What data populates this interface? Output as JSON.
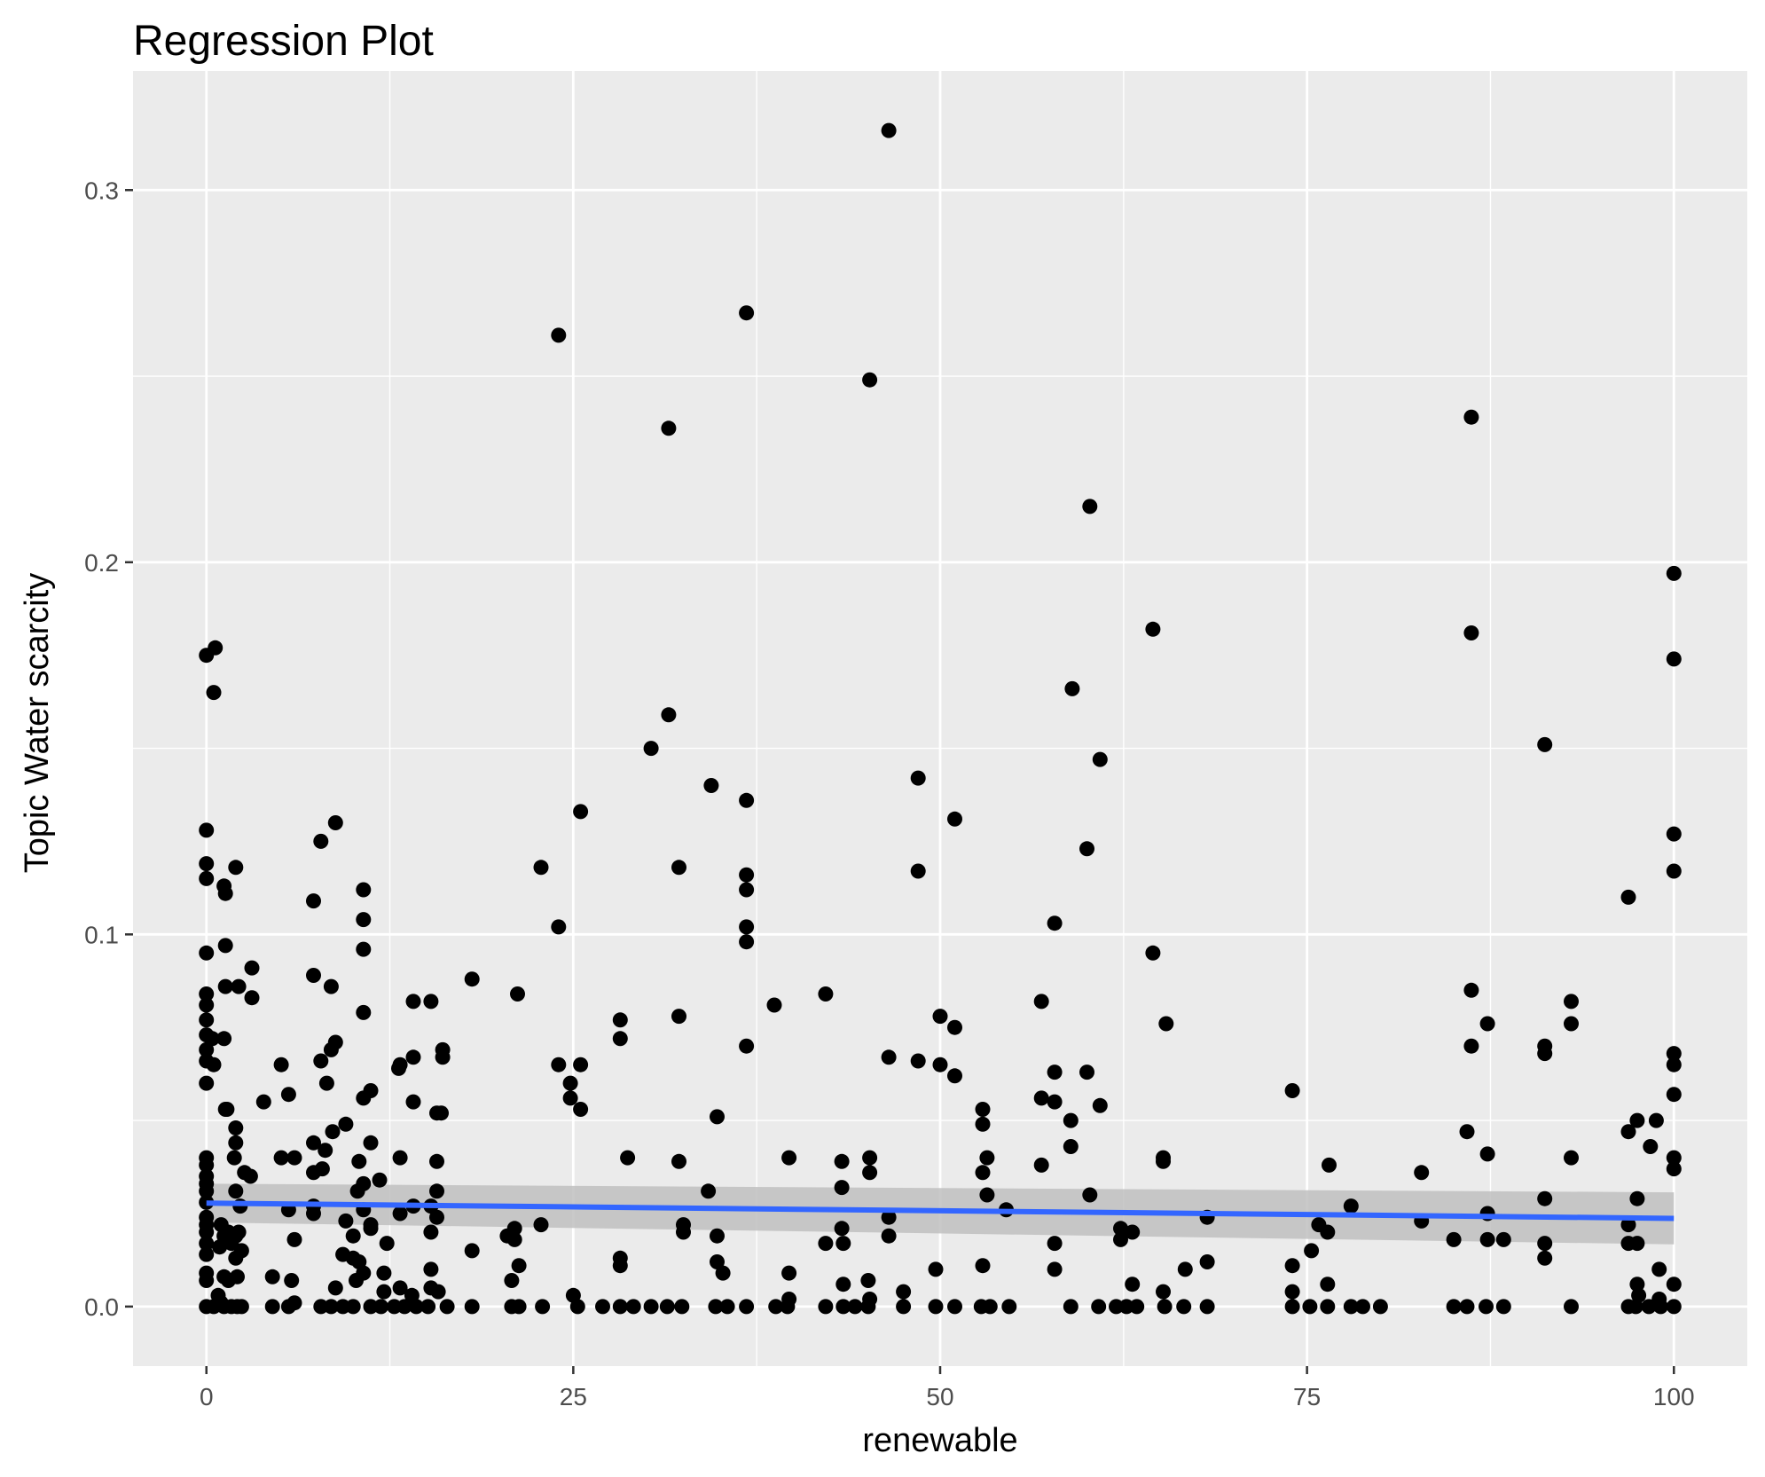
{
  "chart_data": {
    "type": "scatter",
    "title": "Regression Plot",
    "xlabel": "renewable",
    "ylabel": "Topic Water scarcity",
    "xlim": [
      -5,
      105
    ],
    "ylim": [
      -0.016,
      0.332
    ],
    "x_ticks": [
      0,
      25,
      50,
      75,
      100
    ],
    "x_tick_labels": [
      "0",
      "25",
      "50",
      "75",
      "100"
    ],
    "y_ticks": [
      0.0,
      0.1,
      0.2,
      0.3
    ],
    "y_tick_labels": [
      "0.0",
      "0.1",
      "0.2",
      "0.3"
    ],
    "grid": true,
    "colors": {
      "panel": "#ebebeb",
      "grid": "#ffffff",
      "points": "#000000",
      "line": "#3366ff",
      "band": "#bfbfbf"
    },
    "points": [
      [
        46.5,
        0.316
      ],
      [
        36.8,
        0.267
      ],
      [
        24,
        0.261
      ],
      [
        45.2,
        0.249
      ],
      [
        31.5,
        0.236
      ],
      [
        86.2,
        0.239
      ],
      [
        60.2,
        0.215
      ],
      [
        100,
        0.197
      ],
      [
        64.5,
        0.182
      ],
      [
        86.2,
        0.181
      ],
      [
        100,
        0.174
      ],
      [
        0.6,
        0.177
      ],
      [
        0,
        0.175
      ],
      [
        0.5,
        0.165
      ],
      [
        59,
        0.166
      ],
      [
        31.5,
        0.159
      ],
      [
        30.3,
        0.15
      ],
      [
        91.2,
        0.151
      ],
      [
        60.9,
        0.147
      ],
      [
        34.4,
        0.14
      ],
      [
        36.8,
        0.136
      ],
      [
        48.5,
        0.142
      ],
      [
        25.5,
        0.133
      ],
      [
        51,
        0.131
      ],
      [
        0,
        0.128
      ],
      [
        100,
        0.127
      ],
      [
        8.8,
        0.13
      ],
      [
        7.8,
        0.125
      ],
      [
        60,
        0.123
      ],
      [
        0,
        0.119
      ],
      [
        2,
        0.118
      ],
      [
        0,
        0.115
      ],
      [
        1.2,
        0.113
      ],
      [
        1.3,
        0.111
      ],
      [
        22.8,
        0.118
      ],
      [
        32.2,
        0.118
      ],
      [
        36.8,
        0.116
      ],
      [
        48.5,
        0.117
      ],
      [
        100,
        0.117
      ],
      [
        10.7,
        0.112
      ],
      [
        36.8,
        0.112
      ],
      [
        96.9,
        0.11
      ],
      [
        7.3,
        0.109
      ],
      [
        10.7,
        0.104
      ],
      [
        24,
        0.102
      ],
      [
        36.8,
        0.102
      ],
      [
        57.8,
        0.103
      ],
      [
        36.8,
        0.098
      ],
      [
        1.3,
        0.097
      ],
      [
        10.7,
        0.096
      ],
      [
        0,
        0.095
      ],
      [
        64.5,
        0.095
      ],
      [
        3.1,
        0.091
      ],
      [
        7.3,
        0.089
      ],
      [
        18.1,
        0.088
      ],
      [
        1.3,
        0.086
      ],
      [
        2.2,
        0.086
      ],
      [
        8.5,
        0.086
      ],
      [
        0,
        0.084
      ],
      [
        21.2,
        0.084
      ],
      [
        42.2,
        0.084
      ],
      [
        86.2,
        0.085
      ],
      [
        0,
        0.081
      ],
      [
        3.1,
        0.083
      ],
      [
        14.1,
        0.082
      ],
      [
        15.3,
        0.082
      ],
      [
        38.7,
        0.081
      ],
      [
        56.9,
        0.082
      ],
      [
        93,
        0.082
      ],
      [
        10.7,
        0.079
      ],
      [
        32.2,
        0.078
      ],
      [
        50,
        0.078
      ],
      [
        0,
        0.077
      ],
      [
        28.2,
        0.077
      ],
      [
        65.4,
        0.076
      ],
      [
        87.3,
        0.076
      ],
      [
        93,
        0.076
      ],
      [
        51,
        0.075
      ],
      [
        0,
        0.073
      ],
      [
        0.4,
        0.072
      ],
      [
        1.2,
        0.072
      ],
      [
        28.2,
        0.072
      ],
      [
        8.8,
        0.071
      ],
      [
        36.8,
        0.07
      ],
      [
        86.2,
        0.07
      ],
      [
        91.2,
        0.07
      ],
      [
        0,
        0.069
      ],
      [
        8.5,
        0.069
      ],
      [
        16.1,
        0.069
      ],
      [
        100,
        0.068
      ],
      [
        46.5,
        0.067
      ],
      [
        91.2,
        0.068
      ],
      [
        14.1,
        0.067
      ],
      [
        16.1,
        0.067
      ],
      [
        7.8,
        0.066
      ],
      [
        48.5,
        0.066
      ],
      [
        0,
        0.066
      ],
      [
        0.5,
        0.065
      ],
      [
        5.1,
        0.065
      ],
      [
        13.2,
        0.065
      ],
      [
        24,
        0.065
      ],
      [
        25.5,
        0.065
      ],
      [
        50,
        0.065
      ],
      [
        100,
        0.065
      ],
      [
        13.1,
        0.064
      ],
      [
        57.8,
        0.063
      ],
      [
        60,
        0.063
      ],
      [
        51,
        0.062
      ],
      [
        8.2,
        0.06
      ],
      [
        0,
        0.06
      ],
      [
        24.8,
        0.06
      ],
      [
        74,
        0.058
      ],
      [
        11.2,
        0.058
      ],
      [
        5.6,
        0.057
      ],
      [
        100,
        0.057
      ],
      [
        10.7,
        0.056
      ],
      [
        24.8,
        0.056
      ],
      [
        56.9,
        0.056
      ],
      [
        3.9,
        0.055
      ],
      [
        14.1,
        0.055
      ],
      [
        57.8,
        0.055
      ],
      [
        1.3,
        0.053
      ],
      [
        1.4,
        0.053
      ],
      [
        25.5,
        0.053
      ],
      [
        52.9,
        0.053
      ],
      [
        60.9,
        0.054
      ],
      [
        15.7,
        0.052
      ],
      [
        16,
        0.052
      ],
      [
        34.8,
        0.051
      ],
      [
        52.9,
        0.049
      ],
      [
        9.5,
        0.049
      ],
      [
        58.9,
        0.05
      ],
      [
        97.5,
        0.05
      ],
      [
        98.8,
        0.05
      ],
      [
        2,
        0.048
      ],
      [
        8.6,
        0.047
      ],
      [
        85.9,
        0.047
      ],
      [
        96.9,
        0.047
      ],
      [
        2,
        0.044
      ],
      [
        7.3,
        0.044
      ],
      [
        11.2,
        0.044
      ],
      [
        58.9,
        0.043
      ],
      [
        98.4,
        0.043
      ],
      [
        8.1,
        0.042
      ],
      [
        1.9,
        0.04
      ],
      [
        0,
        0.04
      ],
      [
        5.1,
        0.04
      ],
      [
        28.7,
        0.04
      ],
      [
        39.7,
        0.04
      ],
      [
        45.2,
        0.04
      ],
      [
        53.2,
        0.04
      ],
      [
        65.2,
        0.04
      ],
      [
        87.3,
        0.041
      ],
      [
        93,
        0.04
      ],
      [
        100,
        0.04
      ],
      [
        0,
        0.038
      ],
      [
        6,
        0.04
      ],
      [
        10.4,
        0.039
      ],
      [
        13.2,
        0.04
      ],
      [
        15.7,
        0.039
      ],
      [
        32.2,
        0.039
      ],
      [
        43.3,
        0.039
      ],
      [
        56.9,
        0.038
      ],
      [
        65.2,
        0.039
      ],
      [
        76.5,
        0.038
      ],
      [
        100,
        0.037
      ],
      [
        2.6,
        0.036
      ],
      [
        3,
        0.035
      ],
      [
        0,
        0.035
      ],
      [
        0,
        0.033
      ],
      [
        7.3,
        0.036
      ],
      [
        7.9,
        0.037
      ],
      [
        11.8,
        0.034
      ],
      [
        45.2,
        0.036
      ],
      [
        52.9,
        0.036
      ],
      [
        82.8,
        0.036
      ],
      [
        10.7,
        0.033
      ],
      [
        43.3,
        0.032
      ],
      [
        0,
        0.031
      ],
      [
        2,
        0.031
      ],
      [
        10.3,
        0.031
      ],
      [
        15.7,
        0.031
      ],
      [
        34.2,
        0.031
      ],
      [
        60.2,
        0.03
      ],
      [
        53.2,
        0.03
      ],
      [
        91.2,
        0.029
      ],
      [
        97.5,
        0.029
      ],
      [
        0,
        0.028
      ],
      [
        2.3,
        0.027
      ],
      [
        7.3,
        0.027
      ],
      [
        10.7,
        0.026
      ],
      [
        5.6,
        0.026
      ],
      [
        14.1,
        0.027
      ],
      [
        15.3,
        0.027
      ],
      [
        54.5,
        0.026
      ],
      [
        78,
        0.027
      ],
      [
        87.3,
        0.025
      ],
      [
        0,
        0.024
      ],
      [
        7.3,
        0.025
      ],
      [
        13.2,
        0.025
      ],
      [
        15.7,
        0.024
      ],
      [
        46.5,
        0.024
      ],
      [
        68.2,
        0.024
      ],
      [
        82.8,
        0.023
      ],
      [
        0,
        0.022
      ],
      [
        1,
        0.022
      ],
      [
        9.5,
        0.023
      ],
      [
        11.2,
        0.022
      ],
      [
        22.8,
        0.022
      ],
      [
        32.5,
        0.022
      ],
      [
        62.3,
        0.021
      ],
      [
        75.8,
        0.022
      ],
      [
        96.9,
        0.022
      ],
      [
        0,
        0.02
      ],
      [
        1.5,
        0.02
      ],
      [
        2.2,
        0.02
      ],
      [
        11.2,
        0.021
      ],
      [
        21,
        0.021
      ],
      [
        32.5,
        0.02
      ],
      [
        43.3,
        0.021
      ],
      [
        76.4,
        0.02
      ],
      [
        62.3,
        0.018
      ],
      [
        63.1,
        0.02
      ],
      [
        1.2,
        0.019
      ],
      [
        2,
        0.019
      ],
      [
        10,
        0.019
      ],
      [
        15.3,
        0.02
      ],
      [
        20.5,
        0.019
      ],
      [
        34.8,
        0.019
      ],
      [
        46.5,
        0.019
      ],
      [
        0,
        0.017
      ],
      [
        1.7,
        0.017
      ],
      [
        6,
        0.018
      ],
      [
        12.3,
        0.017
      ],
      [
        21,
        0.018
      ],
      [
        42.2,
        0.017
      ],
      [
        43.4,
        0.017
      ],
      [
        57.8,
        0.017
      ],
      [
        85,
        0.018
      ],
      [
        87.3,
        0.018
      ],
      [
        88.4,
        0.018
      ],
      [
        91.2,
        0.017
      ],
      [
        96.9,
        0.017
      ],
      [
        97.5,
        0.017
      ],
      [
        0.9,
        0.016
      ],
      [
        2.4,
        0.015
      ],
      [
        18.1,
        0.015
      ],
      [
        75.3,
        0.015
      ],
      [
        0,
        0.014
      ],
      [
        2,
        0.013
      ],
      [
        10,
        0.013
      ],
      [
        9.3,
        0.014
      ],
      [
        28.2,
        0.013
      ],
      [
        91.2,
        0.013
      ],
      [
        10.4,
        0.012
      ],
      [
        21.3,
        0.011
      ],
      [
        34.8,
        0.012
      ],
      [
        52.9,
        0.011
      ],
      [
        68.2,
        0.012
      ],
      [
        74,
        0.011
      ],
      [
        15.3,
        0.01
      ],
      [
        28.2,
        0.011
      ],
      [
        49.7,
        0.01
      ],
      [
        57.8,
        0.01
      ],
      [
        66.7,
        0.01
      ],
      [
        99,
        0.01
      ],
      [
        0,
        0.009
      ],
      [
        1.2,
        0.008
      ],
      [
        4.5,
        0.008
      ],
      [
        10.7,
        0.009
      ],
      [
        12.1,
        0.009
      ],
      [
        35.2,
        0.009
      ],
      [
        39.7,
        0.009
      ],
      [
        0,
        0.007
      ],
      [
        1.5,
        0.007
      ],
      [
        2.1,
        0.008
      ],
      [
        5.8,
        0.007
      ],
      [
        10.2,
        0.007
      ],
      [
        20.8,
        0.007
      ],
      [
        45.1,
        0.007
      ],
      [
        97.5,
        0.006
      ],
      [
        100,
        0.006
      ],
      [
        8.8,
        0.005
      ],
      [
        13.2,
        0.005
      ],
      [
        15.3,
        0.005
      ],
      [
        43.4,
        0.006
      ],
      [
        63.1,
        0.006
      ],
      [
        76.4,
        0.006
      ],
      [
        0.8,
        0.003
      ],
      [
        14,
        0.003
      ],
      [
        15.8,
        0.004
      ],
      [
        12.1,
        0.004
      ],
      [
        25,
        0.003
      ],
      [
        47.5,
        0.004
      ],
      [
        65.2,
        0.004
      ],
      [
        74,
        0.004
      ],
      [
        97.6,
        0.003
      ],
      [
        1,
        0.001
      ],
      [
        6,
        0.001
      ],
      [
        39.7,
        0.002
      ],
      [
        45.2,
        0.002
      ],
      [
        99,
        0.002
      ],
      [
        0,
        0
      ],
      [
        0.5,
        0
      ],
      [
        1.2,
        0
      ],
      [
        1.7,
        0
      ],
      [
        2.1,
        0
      ],
      [
        2.4,
        0
      ],
      [
        4.5,
        0
      ],
      [
        5.6,
        0
      ],
      [
        7.8,
        0
      ],
      [
        8.5,
        0
      ],
      [
        9.3,
        0
      ],
      [
        10,
        0
      ],
      [
        11.2,
        0
      ],
      [
        11.9,
        0
      ],
      [
        12.8,
        0
      ],
      [
        13.5,
        0
      ],
      [
        14.3,
        0
      ],
      [
        15.1,
        0
      ],
      [
        16.4,
        0
      ],
      [
        18.1,
        0
      ],
      [
        20.8,
        0
      ],
      [
        21.3,
        0
      ],
      [
        22.9,
        0
      ],
      [
        25.3,
        0
      ],
      [
        27,
        0
      ],
      [
        28.2,
        0
      ],
      [
        29.1,
        0
      ],
      [
        30.3,
        0
      ],
      [
        31.4,
        0
      ],
      [
        32.4,
        0
      ],
      [
        34.7,
        0
      ],
      [
        35.5,
        0
      ],
      [
        36.8,
        0
      ],
      [
        38.8,
        0
      ],
      [
        39.6,
        0
      ],
      [
        42.2,
        0
      ],
      [
        43.4,
        0
      ],
      [
        44.2,
        0
      ],
      [
        45.1,
        0
      ],
      [
        47.5,
        0
      ],
      [
        49.7,
        0
      ],
      [
        51,
        0
      ],
      [
        52.8,
        0
      ],
      [
        53.4,
        0
      ],
      [
        54.7,
        0
      ],
      [
        58.9,
        0
      ],
      [
        60.8,
        0
      ],
      [
        62,
        0
      ],
      [
        62.7,
        0
      ],
      [
        63.4,
        0
      ],
      [
        65.3,
        0
      ],
      [
        66.6,
        0
      ],
      [
        68.2,
        0
      ],
      [
        74,
        0
      ],
      [
        75.2,
        0
      ],
      [
        76.4,
        0
      ],
      [
        78,
        0
      ],
      [
        78.8,
        0
      ],
      [
        80,
        0
      ],
      [
        85,
        0
      ],
      [
        85.9,
        0
      ],
      [
        87.2,
        0
      ],
      [
        88.4,
        0
      ],
      [
        93,
        0
      ],
      [
        96.9,
        0
      ],
      [
        97.4,
        0
      ],
      [
        98.3,
        0
      ],
      [
        99.1,
        0
      ],
      [
        100,
        0
      ]
    ],
    "regression": {
      "x": [
        0,
        100
      ],
      "y": [
        0.0278,
        0.0237
      ],
      "ci_lower": [
        0.0226,
        0.0167
      ],
      "ci_upper": [
        0.033,
        0.0307
      ]
    }
  }
}
